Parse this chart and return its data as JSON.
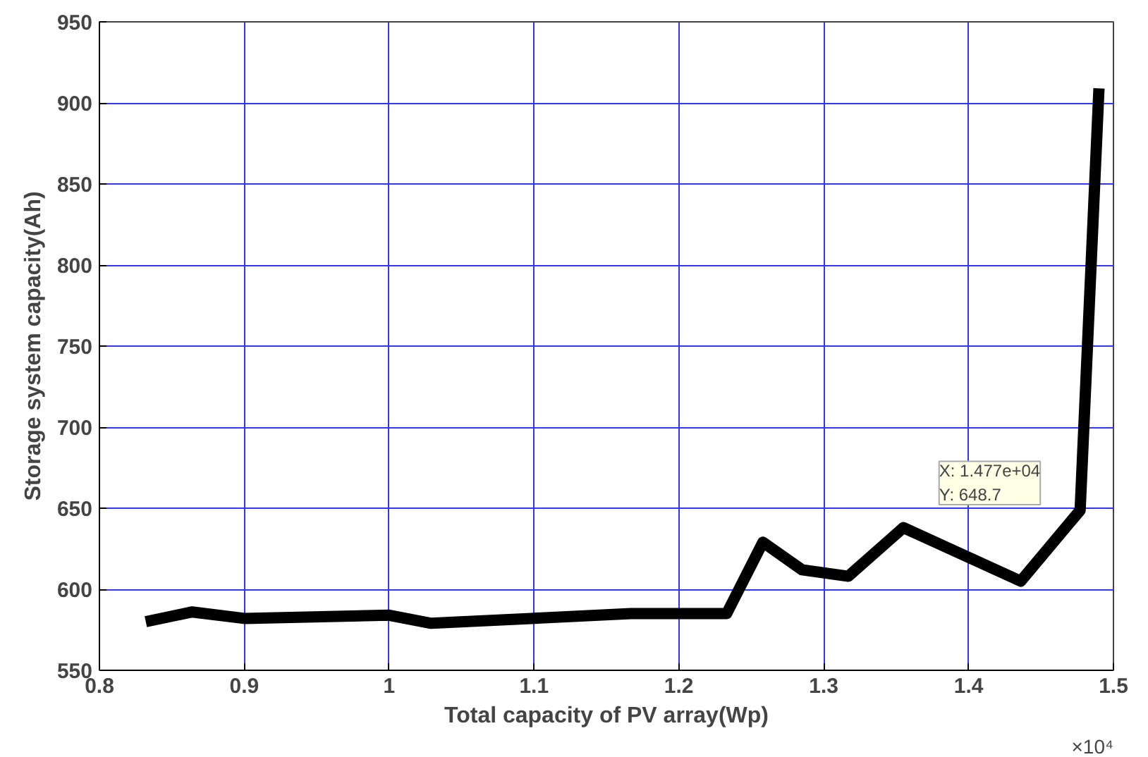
{
  "chart_data": {
    "type": "line",
    "xlabel": "Total capacity of PV array(Wp)",
    "ylabel": "Storage system capacity(Ah)",
    "x": [
      0.832,
      0.864,
      0.9,
      1.0,
      1.029,
      1.098,
      1.167,
      1.233,
      1.258,
      1.285,
      1.317,
      1.355,
      1.436,
      1.477,
      1.49
    ],
    "series": [
      {
        "color": "#000000",
        "values": [
          580,
          586,
          582,
          584,
          579,
          582,
          585,
          585,
          629,
          612,
          608,
          638,
          605,
          648.7,
          909
        ]
      }
    ],
    "xlim": [
      0.8,
      1.5
    ],
    "ylim": [
      550,
      950
    ],
    "xticks": [
      0.8,
      0.9,
      1,
      1.1,
      1.2,
      1.3,
      1.4,
      1.5
    ],
    "yticks": [
      550,
      600,
      650,
      700,
      750,
      800,
      850,
      900,
      950
    ],
    "grid": true,
    "marker": "none",
    "line_style": "solid",
    "annotations": [
      "×10⁴",
      {
        "text": "X: 1.477e+04\nY: 648.7",
        "x": 1.477,
        "y": 648.7
      }
    ]
  }
}
